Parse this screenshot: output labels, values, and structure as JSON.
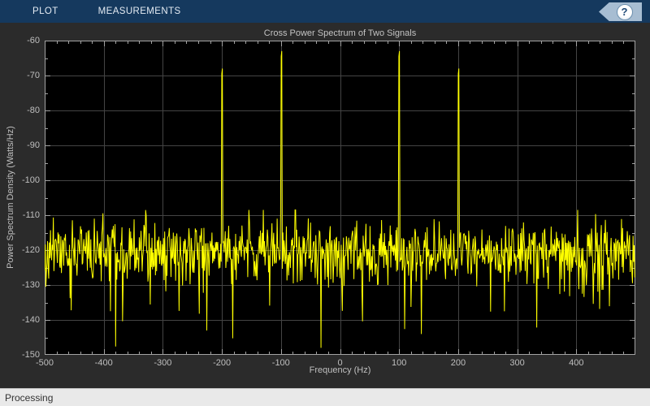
{
  "toolbar": {
    "tabs": [
      {
        "label": "PLOT"
      },
      {
        "label": "MEASUREMENTS"
      }
    ],
    "help_icon": "?",
    "bg_color": "#15395e"
  },
  "status_bar": {
    "text": "Processing"
  },
  "colors": {
    "figure_bg": "#2b2b2b",
    "axes_bg": "#000000",
    "grid": "#444444",
    "axis_box": "#a3a3a3",
    "tick_text": "#bfbfbf",
    "signal": "#ffff00",
    "statusbar_bg": "#e9e9e9"
  },
  "chart_data": {
    "type": "line",
    "title": "Cross Power Spectrum of Two Signals",
    "xlabel": "Frequency (Hz)",
    "ylabel": "Power Spectrum Density (Watts/Hz)",
    "xlim": [
      -500,
      500
    ],
    "ylim": [
      -150,
      -60
    ],
    "x_ticks": [
      -500,
      -400,
      -300,
      -200,
      -100,
      0,
      100,
      200,
      300,
      400
    ],
    "y_ticks": [
      -60,
      -70,
      -80,
      -90,
      -100,
      -110,
      -120,
      -130,
      -140,
      -150
    ],
    "x_minor_step": 20,
    "y_minor_step": 5,
    "grid": true,
    "legend": "none",
    "line_color": "#ffff00",
    "peaks": [
      {
        "frequency_hz": -200,
        "level_db": -69.5
      },
      {
        "frequency_hz": -100,
        "level_db": -64.5
      },
      {
        "frequency_hz": 100,
        "level_db": -64.5
      },
      {
        "frequency_hz": 200,
        "level_db": -69.5
      }
    ],
    "noise_floor": {
      "mean_db": -121,
      "std_db": 4.3,
      "min_db": -148,
      "max_db": -108.5
    },
    "n_points": 1024,
    "seed": 11
  }
}
